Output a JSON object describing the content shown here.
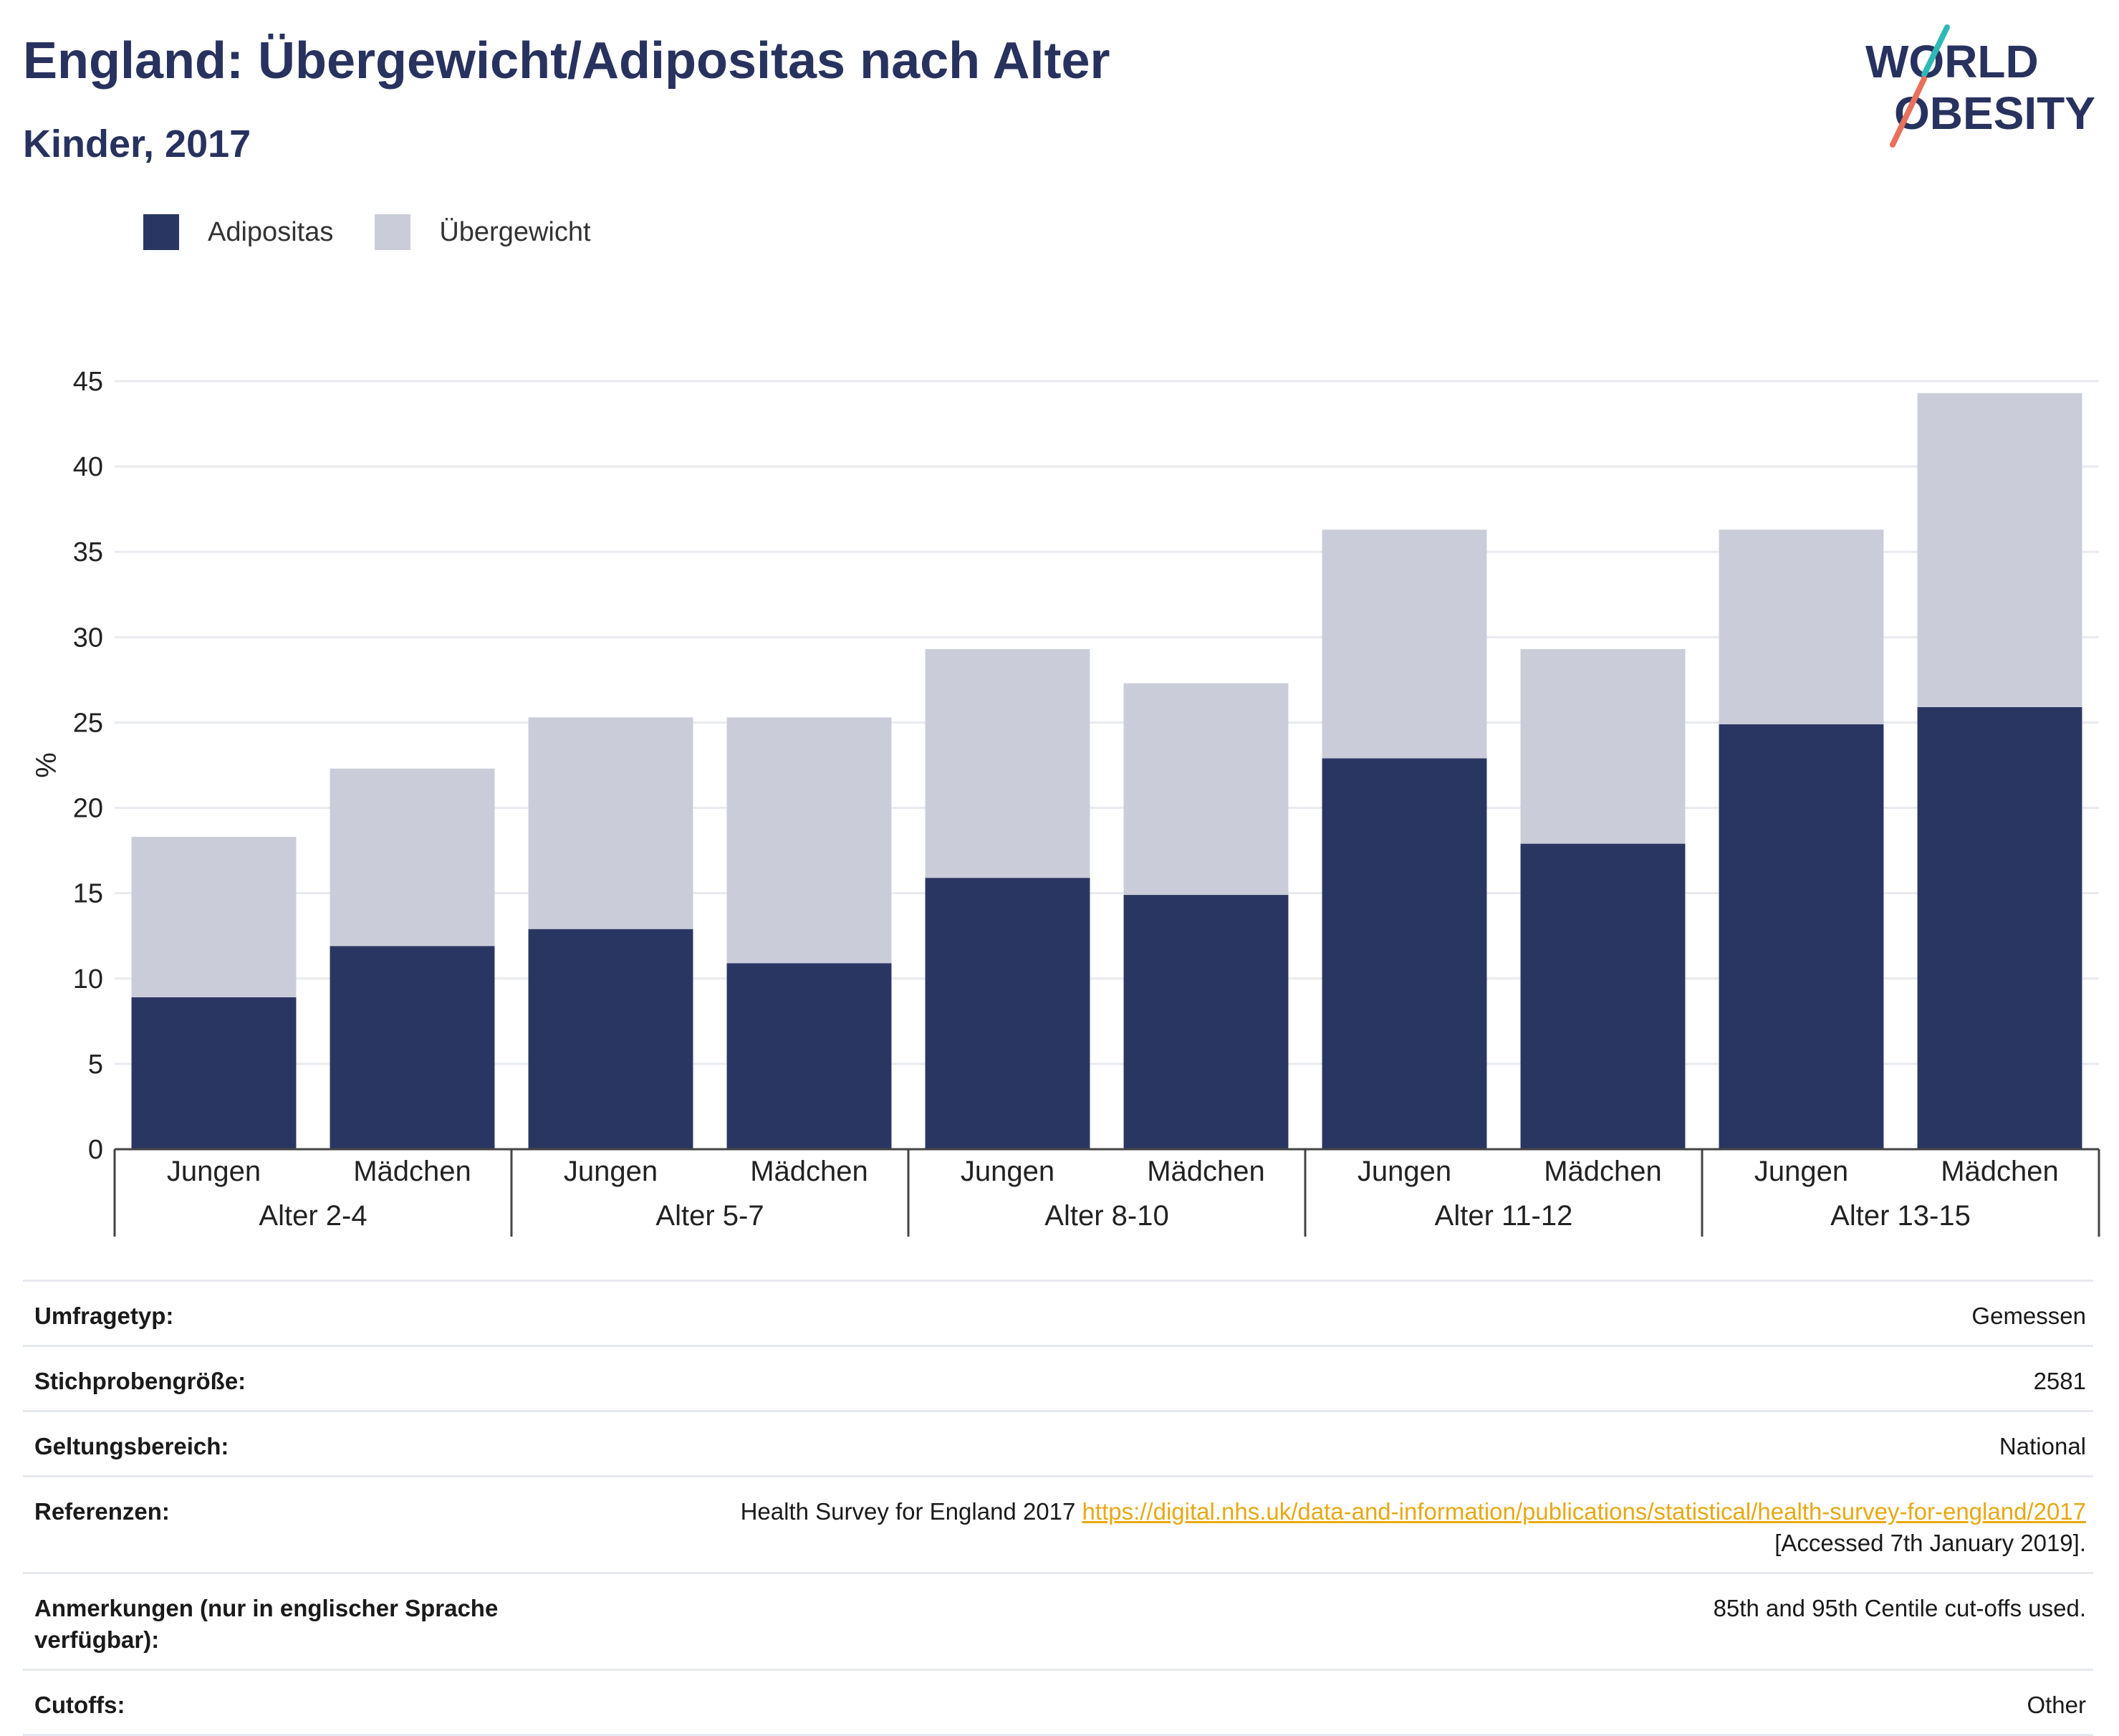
{
  "header": {
    "title": "England: Übergewicht/Adipositas nach Alter",
    "subtitle": "Kinder, 2017"
  },
  "logo": {
    "line1": "WORLD",
    "line2": "OBESITY"
  },
  "colors": {
    "obesity": "#2a3662",
    "overweight": "#cacdd9",
    "title": "#27325e",
    "link": "#e8a814"
  },
  "chart_data": {
    "type": "bar",
    "stacked": true,
    "title": "England: Übergewicht/Adipositas nach Alter",
    "subtitle": "Kinder, 2017",
    "ylabel": "%",
    "ylim": [
      0,
      45
    ],
    "yticks": [
      0,
      5,
      10,
      15,
      20,
      25,
      30,
      35,
      40,
      45
    ],
    "grid": true,
    "legend_position": "top-left",
    "groups": [
      "Alter 2-4",
      "Alter 5-7",
      "Alter 8-10",
      "Alter 11-12",
      "Alter 13-15"
    ],
    "subcategories": [
      "Jungen",
      "Mädchen"
    ],
    "series": [
      {
        "name": "Adipositas",
        "color": "#2a3662",
        "values": [
          8.9,
          11.9,
          12.9,
          10.9,
          15.9,
          14.9,
          22.9,
          17.9,
          24.9,
          25.9
        ]
      },
      {
        "name": "Übergewicht",
        "color": "#cacdd9",
        "values": [
          9.4,
          10.4,
          12.4,
          14.4,
          13.4,
          12.4,
          13.4,
          11.4,
          11.4,
          18.4
        ]
      }
    ]
  },
  "info": {
    "rows": [
      {
        "label": "Umfragetyp:",
        "value": "Gemessen"
      },
      {
        "label": "Stichprobengröße:",
        "value": "2581"
      },
      {
        "label": "Geltungsbereich:",
        "value": "National"
      }
    ],
    "references": {
      "label": "Referenzen:",
      "text": "Health Survey for England 2017",
      "link": "https://digital.nhs.uk/data-and-information/publications/statistical/health-survey-for-england/2017",
      "accessed": "[Accessed 7th January 2019]."
    },
    "notes": {
      "label": "Anmerkungen (nur in englischer Sprache verfügbar):",
      "value": "85th and 95th Centile cut-offs used."
    },
    "cutoffs": {
      "label": "Cutoffs:",
      "value": "Other"
    }
  }
}
